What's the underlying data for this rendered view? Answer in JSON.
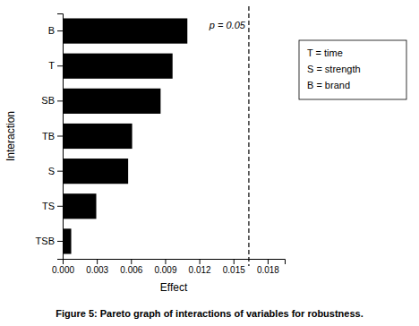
{
  "chart_data": {
    "type": "bar",
    "orientation": "horizontal",
    "categories": [
      "TSB",
      "TS",
      "S",
      "TB",
      "SB",
      "T",
      "B"
    ],
    "values": [
      0.00075,
      0.00295,
      0.00575,
      0.0061,
      0.0086,
      0.00965,
      0.01095
    ],
    "color": "#000000",
    "xlim": [
      0,
      0.0195
    ],
    "xticks": [
      {
        "value": 0,
        "label": "0.000"
      },
      0.003,
      0.006,
      0.009,
      0.012,
      0.015,
      0.018
    ],
    "xlabel": "Effect",
    "ylabel": "Interaction",
    "reference_lines": [
      {
        "x": 0.01635,
        "label": "p = 0.05"
      }
    ],
    "annotations": [
      "T = time",
      "S = strength",
      "B = brand"
    ],
    "caption": "Figure 5: Pareto graph of interactions of variables for robustness.",
    "grid": false
  }
}
